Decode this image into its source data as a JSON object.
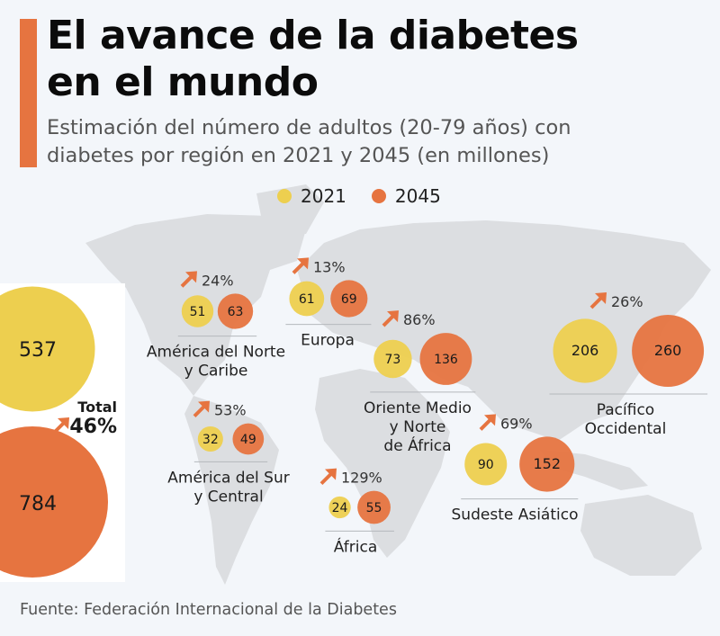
{
  "header": {
    "title_line1": "El avance de la diabetes",
    "title_line2": "en el mundo",
    "subtitle_line1": "Estimación del número de adultos (20-79 años) con",
    "subtitle_line2": "diabetes por región en 2021 y 2045 (en millones)"
  },
  "legend": [
    {
      "label": "2021",
      "color": "#edcf4f"
    },
    {
      "label": "2045",
      "color": "#e67440"
    }
  ],
  "colors": {
    "y2021": "#edcf4f",
    "y2045": "#e67440",
    "accent": "#e67440",
    "map": "#dcdee1"
  },
  "total": {
    "label": "Total",
    "change": "46%",
    "v2021": "537",
    "v2045": "784"
  },
  "source": "Fuente: Federación Internacional de la Diabetes",
  "chart_data": {
    "type": "bubble",
    "title": "El avance de la diabetes en el mundo",
    "subtitle": "Estimación del número de adultos (20-79 años) con diabetes por región en 2021 y 2045 (en millones)",
    "units": "millones de adultos (20-79 años)",
    "series": [
      "2021",
      "2045"
    ],
    "regions": [
      {
        "name_line1": "América del Norte",
        "name_line2": "y Caribe",
        "name_line3": "",
        "v2021": 51,
        "v2045": 63,
        "change": "24%"
      },
      {
        "name_line1": "Europa",
        "name_line2": "",
        "name_line3": "",
        "v2021": 61,
        "v2045": 69,
        "change": "13%"
      },
      {
        "name_line1": "Oriente Medio",
        "name_line2": "y Norte",
        "name_line3": "de África",
        "v2021": 73,
        "v2045": 136,
        "change": "86%"
      },
      {
        "name_line1": "Pacífico",
        "name_line2": "Occidental",
        "name_line3": "",
        "v2021": 206,
        "v2045": 260,
        "change": "26%"
      },
      {
        "name_line1": "América del Sur",
        "name_line2": "y Central",
        "name_line3": "",
        "v2021": 32,
        "v2045": 49,
        "change": "53%"
      },
      {
        "name_line1": "Sudeste Asiático",
        "name_line2": "",
        "name_line3": "",
        "v2021": 90,
        "v2045": 152,
        "change": "69%"
      },
      {
        "name_line1": "África",
        "name_line2": "",
        "name_line3": "",
        "v2021": 24,
        "v2045": 55,
        "change": "129%"
      }
    ],
    "total": {
      "v2021": 537,
      "v2045": 784,
      "change": "46%"
    }
  }
}
